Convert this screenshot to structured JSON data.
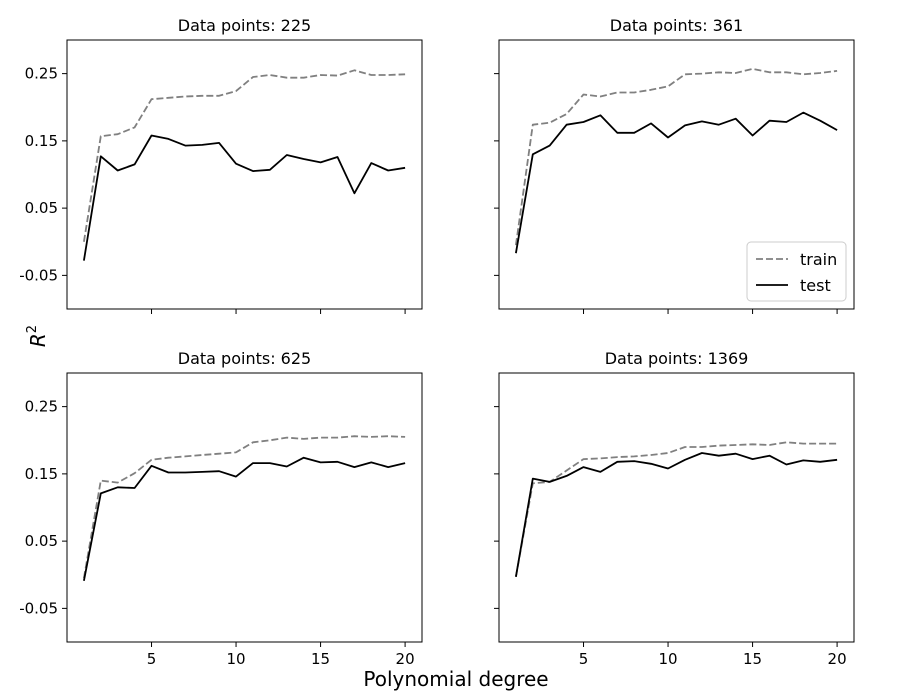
{
  "figure": {
    "xlabel": "Polynomial degree",
    "ylabel_base": "R",
    "ylabel_sup": "2"
  },
  "legend": {
    "location": "lower right",
    "panel_index": 1
  },
  "colors": {
    "train": "#808080",
    "test": "#000000"
  },
  "chart_data": [
    {
      "type": "line",
      "title": "Data points: 225",
      "xlim": [
        0,
        21
      ],
      "ylim": [
        -0.1,
        0.3
      ],
      "yticks": [
        "-0.05",
        "0.05",
        "0.15",
        "0.25"
      ],
      "xticks": [
        "5",
        "10",
        "15",
        "20"
      ],
      "x": [
        1,
        2,
        3,
        4,
        5,
        6,
        7,
        8,
        9,
        10,
        11,
        12,
        13,
        14,
        15,
        16,
        17,
        18,
        19,
        20
      ],
      "series": [
        {
          "name": "train",
          "style": "dashed",
          "values": [
            0.0,
            0.157,
            0.16,
            0.17,
            0.212,
            0.214,
            0.216,
            0.217,
            0.217,
            0.224,
            0.245,
            0.248,
            0.244,
            0.244,
            0.248,
            0.247,
            0.255,
            0.248,
            0.248,
            0.249
          ]
        },
        {
          "name": "test",
          "style": "solid",
          "values": [
            -0.028,
            0.127,
            0.106,
            0.115,
            0.158,
            0.153,
            0.143,
            0.144,
            0.147,
            0.116,
            0.105,
            0.107,
            0.129,
            0.123,
            0.118,
            0.126,
            0.072,
            0.117,
            0.106,
            0.11
          ]
        }
      ]
    },
    {
      "type": "line",
      "title": "Data points: 361",
      "xlim": [
        0,
        21
      ],
      "ylim": [
        -0.1,
        0.3
      ],
      "yticks": [
        "-0.05",
        "0.05",
        "0.15",
        "0.25"
      ],
      "xticks": [
        "5",
        "10",
        "15",
        "20"
      ],
      "x": [
        1,
        2,
        3,
        4,
        5,
        6,
        7,
        8,
        9,
        10,
        11,
        12,
        13,
        14,
        15,
        16,
        17,
        18,
        19,
        20
      ],
      "series": [
        {
          "name": "train",
          "style": "dashed",
          "values": [
            -0.005,
            0.174,
            0.177,
            0.19,
            0.219,
            0.216,
            0.222,
            0.222,
            0.226,
            0.231,
            0.249,
            0.25,
            0.252,
            0.251,
            0.257,
            0.252,
            0.252,
            0.249,
            0.251,
            0.254
          ]
        },
        {
          "name": "test",
          "style": "solid",
          "values": [
            -0.017,
            0.13,
            0.143,
            0.174,
            0.178,
            0.188,
            0.162,
            0.162,
            0.176,
            0.155,
            0.173,
            0.179,
            0.174,
            0.183,
            0.158,
            0.18,
            0.178,
            0.192,
            0.18,
            0.166
          ]
        }
      ]
    },
    {
      "type": "line",
      "title": "Data points: 625",
      "xlim": [
        0,
        21
      ],
      "ylim": [
        -0.1,
        0.3
      ],
      "yticks": [
        "-0.05",
        "0.05",
        "0.15",
        "0.25"
      ],
      "xticks": [
        "5",
        "10",
        "15",
        "20"
      ],
      "x": [
        1,
        2,
        3,
        4,
        5,
        6,
        7,
        8,
        9,
        10,
        11,
        12,
        13,
        14,
        15,
        16,
        17,
        18,
        19,
        20
      ],
      "series": [
        {
          "name": "train",
          "style": "dashed",
          "values": [
            -0.005,
            0.14,
            0.137,
            0.151,
            0.171,
            0.174,
            0.176,
            0.178,
            0.18,
            0.182,
            0.197,
            0.2,
            0.204,
            0.202,
            0.204,
            0.204,
            0.206,
            0.205,
            0.206,
            0.205
          ]
        },
        {
          "name": "test",
          "style": "solid",
          "values": [
            -0.009,
            0.121,
            0.13,
            0.129,
            0.162,
            0.152,
            0.152,
            0.153,
            0.154,
            0.146,
            0.166,
            0.166,
            0.161,
            0.174,
            0.167,
            0.168,
            0.16,
            0.167,
            0.16,
            0.166
          ]
        }
      ]
    },
    {
      "type": "line",
      "title": "Data points: 1369",
      "xlim": [
        0,
        21
      ],
      "ylim": [
        -0.1,
        0.3
      ],
      "yticks": [
        "-0.05",
        "0.05",
        "0.15",
        "0.25"
      ],
      "xticks": [
        "5",
        "10",
        "15",
        "20"
      ],
      "x": [
        1,
        2,
        3,
        4,
        5,
        6,
        7,
        8,
        9,
        10,
        11,
        12,
        13,
        14,
        15,
        16,
        17,
        18,
        19,
        20
      ],
      "series": [
        {
          "name": "train",
          "style": "dashed",
          "values": [
            -0.003,
            0.136,
            0.138,
            0.155,
            0.172,
            0.173,
            0.175,
            0.176,
            0.178,
            0.181,
            0.19,
            0.19,
            0.192,
            0.193,
            0.194,
            0.193,
            0.197,
            0.195,
            0.195,
            0.195
          ]
        },
        {
          "name": "test",
          "style": "solid",
          "values": [
            -0.003,
            0.143,
            0.138,
            0.147,
            0.16,
            0.153,
            0.168,
            0.169,
            0.165,
            0.158,
            0.171,
            0.181,
            0.177,
            0.18,
            0.172,
            0.177,
            0.164,
            0.17,
            0.168,
            0.171
          ]
        }
      ]
    }
  ]
}
